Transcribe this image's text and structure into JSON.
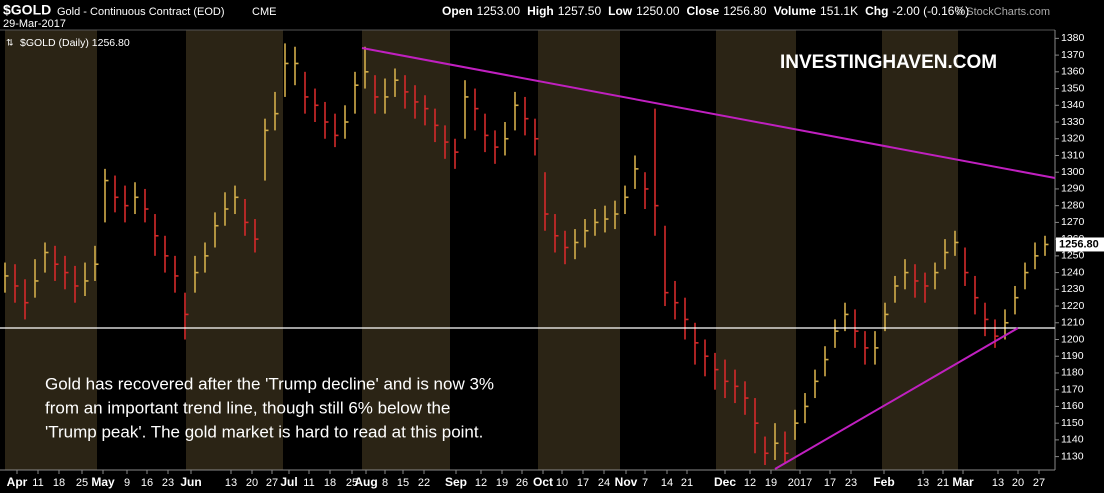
{
  "chart_data": {
    "type": "hlc",
    "symbol": "$GOLD",
    "title": "Gold - Continuous Contract (EOD)",
    "exchange": "CME",
    "date": "29-Mar-2017",
    "quote": [
      "Open",
      "1253.00",
      "High",
      "1257.50",
      "Low",
      "1250.00",
      "Close",
      "1256.80",
      "Volume",
      "151.1K",
      "Chg",
      "-2.00 (-0.16%)"
    ],
    "source": "© StockCharts.com",
    "legend": "$GOLD (Daily) 1256.80",
    "watermark": "INVESTINGHAVEN.COM",
    "annotation": [
      "Gold has recovered after the 'Trump decline' and is now 3%",
      "from an important trend line, though still 6% below the",
      "'Trump peak'. The gold market is hard to read at this point."
    ],
    "last_label": "1256.80",
    "last_value": 1256.8,
    "up_color": "#d2ad4a",
    "down_color": "#d42a2a",
    "xlim": [
      -0.5,
      105
    ],
    "ylim": [
      1122,
      1385
    ],
    "yticks": [
      1130,
      1140,
      1150,
      1160,
      1170,
      1180,
      1190,
      1200,
      1210,
      1220,
      1230,
      1240,
      1250,
      1260,
      1270,
      1280,
      1290,
      1300,
      1310,
      1320,
      1330,
      1340,
      1350,
      1360,
      1370,
      1380
    ],
    "xticks": [
      {
        "value": 1.2,
        "label": "Apr"
      },
      {
        "value": 3.3,
        "label": "11"
      },
      {
        "value": 5.4,
        "label": "18"
      },
      {
        "value": 7.7,
        "label": "25"
      },
      {
        "value": 9.8,
        "label": "May"
      },
      {
        "value": 12.2,
        "label": "9"
      },
      {
        "value": 14.2,
        "label": "16"
      },
      {
        "value": 16.3,
        "label": "23"
      },
      {
        "value": 18.6,
        "label": "Jun"
      },
      {
        "value": 22.6,
        "label": "13"
      },
      {
        "value": 24.7,
        "label": "20"
      },
      {
        "value": 26.7,
        "label": "27"
      },
      {
        "value": 28.4,
        "label": "Jul"
      },
      {
        "value": 30.4,
        "label": "11"
      },
      {
        "value": 32.5,
        "label": "18"
      },
      {
        "value": 34.7,
        "label": "25"
      },
      {
        "value": 36.1,
        "label": "Aug"
      },
      {
        "value": 38,
        "label": "8"
      },
      {
        "value": 39.8,
        "label": "15"
      },
      {
        "value": 41.9,
        "label": "22"
      },
      {
        "value": 45.1,
        "label": "Sep"
      },
      {
        "value": 47.6,
        "label": "12"
      },
      {
        "value": 49.7,
        "label": "19"
      },
      {
        "value": 51.7,
        "label": "26"
      },
      {
        "value": 53.8,
        "label": "Oct"
      },
      {
        "value": 55.7,
        "label": "10"
      },
      {
        "value": 57.8,
        "label": "17"
      },
      {
        "value": 59.9,
        "label": "24"
      },
      {
        "value": 62.1,
        "label": "Nov"
      },
      {
        "value": 64,
        "label": "7"
      },
      {
        "value": 66.2,
        "label": "14"
      },
      {
        "value": 68.2,
        "label": "21"
      },
      {
        "value": 72,
        "label": "Dec"
      },
      {
        "value": 74.5,
        "label": "12"
      },
      {
        "value": 76.6,
        "label": "19"
      },
      {
        "value": 79.5,
        "label": "2017"
      },
      {
        "value": 82.5,
        "label": "17"
      },
      {
        "value": 84.6,
        "label": "23"
      },
      {
        "value": 87.9,
        "label": "Feb"
      },
      {
        "value": 91.8,
        "label": "13"
      },
      {
        "value": 93.8,
        "label": "21"
      },
      {
        "value": 95.8,
        "label": "Mar"
      },
      {
        "value": 99.3,
        "label": "13"
      },
      {
        "value": 101.3,
        "label": "20"
      },
      {
        "value": 103.4,
        "label": "27"
      }
    ],
    "close": [
      1238,
      1232,
      1222,
      1235,
      1252,
      1245,
      1240,
      1232,
      1235,
      1245,
      1295,
      1285,
      1280,
      1285,
      1278,
      1262,
      1250,
      1238,
      1215,
      1240,
      1250,
      1268,
      1278,
      1285,
      1270,
      1260,
      1325,
      1335,
      1365,
      1365,
      1345,
      1340,
      1330,
      1322,
      1330,
      1352,
      1360,
      1345,
      1345,
      1355,
      1348,
      1342,
      1338,
      1328,
      1318,
      1312,
      1345,
      1338,
      1322,
      1315,
      1320,
      1340,
      1332,
      1320,
      1275,
      1262,
      1255,
      1258,
      1265,
      1270,
      1272,
      1275,
      1285,
      1302,
      1290,
      1280,
      1228,
      1222,
      1212,
      1198,
      1190,
      1182,
      1175,
      1172,
      1165,
      1150,
      1132,
      1138,
      1132,
      1150,
      1160,
      1175,
      1188,
      1205,
      1215,
      1205,
      1195,
      1195,
      1215,
      1232,
      1240,
      1235,
      1232,
      1240,
      1252,
      1258,
      1240,
      1225,
      1212,
      1202,
      1210,
      1225,
      1240,
      1250,
      1256.8
    ],
    "high": [
      1246,
      1245,
      1236,
      1248,
      1258,
      1256,
      1250,
      1244,
      1246,
      1256,
      1302,
      1298,
      1292,
      1294,
      1290,
      1275,
      1262,
      1250,
      1228,
      1250,
      1258,
      1276,
      1288,
      1292,
      1284,
      1272,
      1332,
      1348,
      1377,
      1375,
      1360,
      1350,
      1342,
      1335,
      1340,
      1360,
      1375,
      1358,
      1356,
      1362,
      1358,
      1352,
      1346,
      1338,
      1328,
      1320,
      1355,
      1350,
      1335,
      1325,
      1330,
      1348,
      1345,
      1332,
      1300,
      1275,
      1265,
      1266,
      1272,
      1278,
      1280,
      1283,
      1292,
      1310,
      1300,
      1338,
      1268,
      1235,
      1225,
      1210,
      1200,
      1192,
      1188,
      1182,
      1175,
      1165,
      1142,
      1150,
      1145,
      1158,
      1168,
      1182,
      1196,
      1212,
      1222,
      1218,
      1205,
      1205,
      1222,
      1238,
      1248,
      1245,
      1240,
      1246,
      1260,
      1265,
      1255,
      1238,
      1222,
      1212,
      1218,
      1232,
      1246,
      1258,
      1262
    ],
    "low": [
      1228,
      1222,
      1212,
      1225,
      1240,
      1235,
      1230,
      1222,
      1226,
      1235,
      1270,
      1276,
      1270,
      1275,
      1270,
      1250,
      1240,
      1228,
      1200,
      1228,
      1240,
      1255,
      1268,
      1275,
      1262,
      1252,
      1295,
      1325,
      1345,
      1352,
      1335,
      1330,
      1320,
      1315,
      1320,
      1335,
      1350,
      1335,
      1335,
      1345,
      1338,
      1332,
      1328,
      1318,
      1308,
      1302,
      1320,
      1325,
      1312,
      1305,
      1310,
      1325,
      1322,
      1310,
      1265,
      1252,
      1245,
      1248,
      1255,
      1262,
      1264,
      1266,
      1275,
      1290,
      1278,
      1262,
      1220,
      1212,
      1200,
      1185,
      1178,
      1170,
      1165,
      1162,
      1155,
      1132,
      1125,
      1128,
      1126,
      1140,
      1150,
      1165,
      1178,
      1195,
      1205,
      1195,
      1185,
      1185,
      1205,
      1222,
      1230,
      1225,
      1222,
      1230,
      1242,
      1250,
      1232,
      1215,
      1202,
      1195,
      1200,
      1215,
      1230,
      1242,
      1250
    ]
  }
}
